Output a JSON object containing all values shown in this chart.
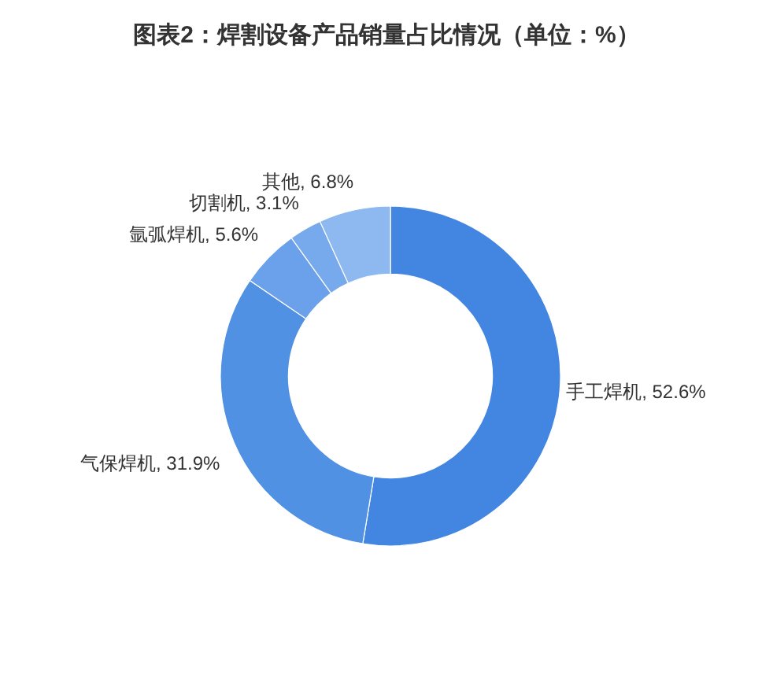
{
  "chart_data": {
    "type": "donut",
    "title": "图表2：焊割设备产品销量占比情况（单位：%）",
    "categories": [
      "手工焊机",
      "气保焊机",
      "氩弧焊机",
      "切割机",
      "其他"
    ],
    "values": [
      52.6,
      31.9,
      5.6,
      3.1,
      6.8
    ],
    "colors": [
      "#4286e2",
      "#5191e4",
      "#6aa1ea",
      "#77aaec",
      "#8db9f0"
    ],
    "value_labels": [
      "52.6%",
      "31.9%",
      "5.6%",
      "3.1%",
      "6.8%"
    ]
  }
}
